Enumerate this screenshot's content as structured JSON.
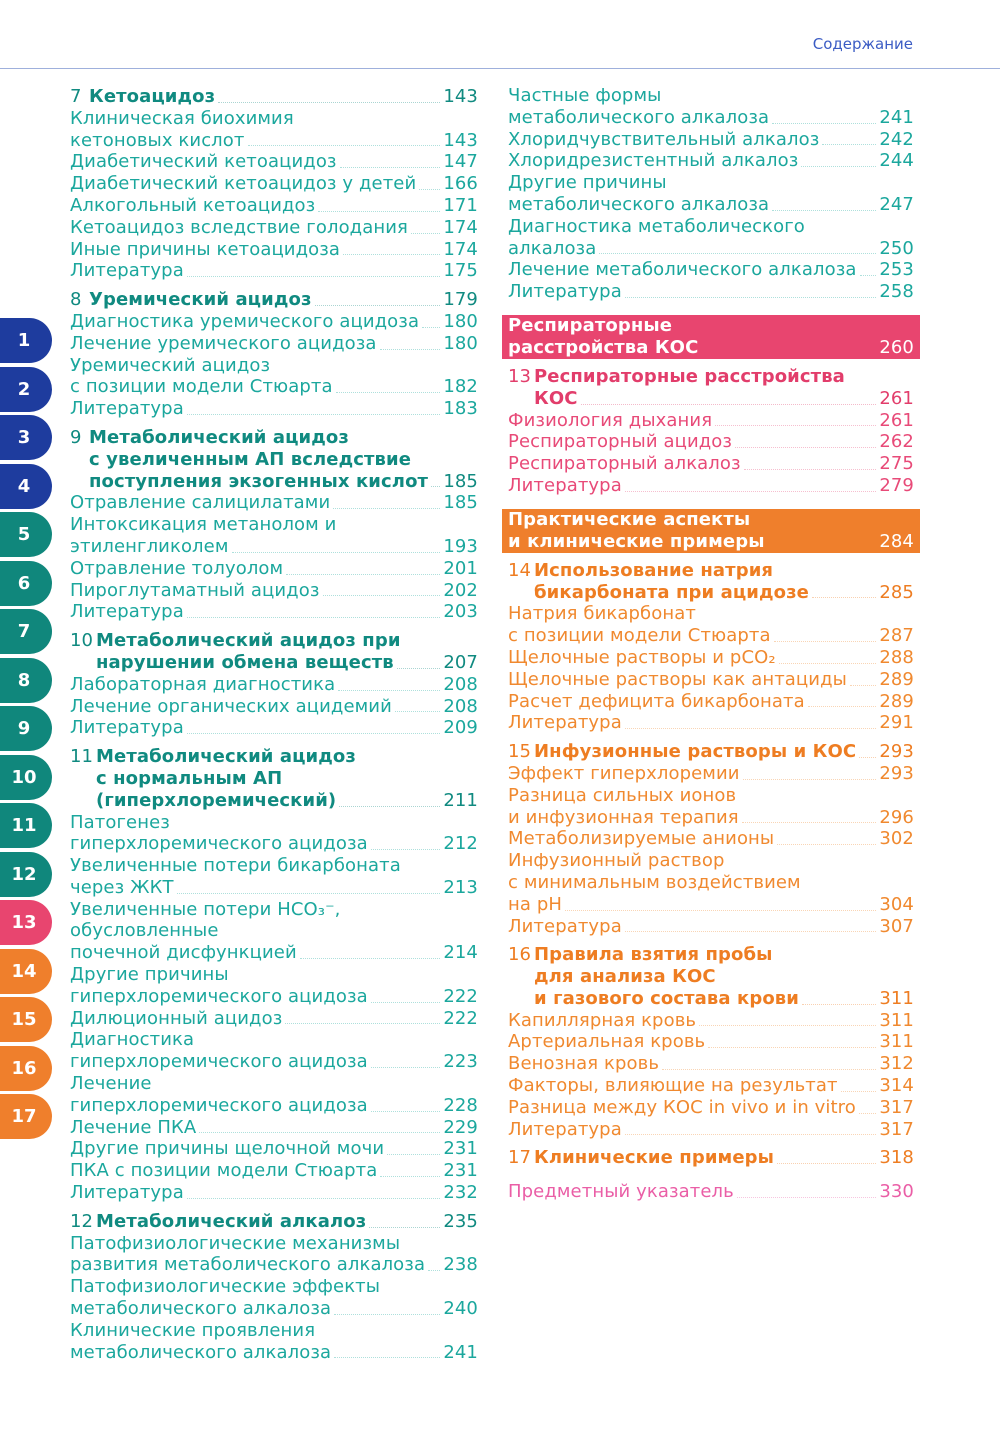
{
  "header": {
    "title": "Содержание"
  },
  "colors": {
    "blue": "#1e3c9e",
    "teal": "#10877c",
    "pink": "#e8456f",
    "orange": "#ef7f2c"
  },
  "tabs": [
    {
      "label": "1",
      "tone": "blue"
    },
    {
      "label": "2",
      "tone": "blue"
    },
    {
      "label": "3",
      "tone": "blue"
    },
    {
      "label": "4",
      "tone": "blue"
    },
    {
      "label": "5",
      "tone": "teal"
    },
    {
      "label": "6",
      "tone": "teal"
    },
    {
      "label": "7",
      "tone": "teal"
    },
    {
      "label": "8",
      "tone": "teal"
    },
    {
      "label": "9",
      "tone": "teal"
    },
    {
      "label": "10",
      "tone": "teal"
    },
    {
      "label": "11",
      "tone": "teal"
    },
    {
      "label": "12",
      "tone": "teal"
    },
    {
      "label": "13",
      "tone": "pink"
    },
    {
      "label": "14",
      "tone": "orange"
    },
    {
      "label": "15",
      "tone": "orange"
    },
    {
      "label": "16",
      "tone": "orange"
    },
    {
      "label": "17",
      "tone": "orange"
    }
  ],
  "left": {
    "blocks": [
      {
        "type": "chapter",
        "tone": "teal",
        "num": "7",
        "lines": [
          "Кетоацидоз"
        ],
        "page": "143"
      },
      {
        "type": "item",
        "tone": "teal",
        "lines": [
          "Клиническая биохимия",
          "кетоновых кислот"
        ],
        "page": "143"
      },
      {
        "type": "item",
        "tone": "teal",
        "lines": [
          "Диабетический кетоацидоз"
        ],
        "page": "147"
      },
      {
        "type": "item",
        "tone": "teal",
        "lines": [
          "Диабетический кетоацидоз у детей"
        ],
        "page": "166"
      },
      {
        "type": "item",
        "tone": "teal",
        "lines": [
          "Алкогольный кетоацидоз"
        ],
        "page": "171"
      },
      {
        "type": "item",
        "tone": "teal",
        "lines": [
          "Кетоацидоз вследствие голодания"
        ],
        "page": "174"
      },
      {
        "type": "item",
        "tone": "teal",
        "lines": [
          "Иные причины кетоацидоза"
        ],
        "page": "174"
      },
      {
        "type": "item",
        "tone": "teal",
        "lines": [
          "Литература"
        ],
        "page": "175"
      },
      {
        "type": "chapter",
        "tone": "teal",
        "num": "8",
        "lines": [
          "Уремический ацидоз"
        ],
        "page": "179"
      },
      {
        "type": "item",
        "tone": "teal",
        "lines": [
          "Диагностика уремического ацидоза"
        ],
        "page": "180"
      },
      {
        "type": "item",
        "tone": "teal",
        "lines": [
          "Лечение уремического ацидоза"
        ],
        "page": "180"
      },
      {
        "type": "item",
        "tone": "teal",
        "lines": [
          "Уремический ацидоз",
          "с позиции модели Стюарта"
        ],
        "page": "182"
      },
      {
        "type": "item",
        "tone": "teal",
        "lines": [
          "Литература"
        ],
        "page": "183"
      },
      {
        "type": "chapter",
        "tone": "teal",
        "num": "9",
        "lines": [
          "Метаболический ацидоз",
          "с увеличенным АП вследствие",
          "поступления экзогенных кислот"
        ],
        "page": "185"
      },
      {
        "type": "item",
        "tone": "teal",
        "lines": [
          "Отравление салицилатами"
        ],
        "page": "185"
      },
      {
        "type": "item",
        "tone": "teal",
        "lines": [
          "Интоксикация метанолом и",
          "этиленгликолем"
        ],
        "page": "193"
      },
      {
        "type": "item",
        "tone": "teal",
        "lines": [
          "Отравление толуолом"
        ],
        "page": "201"
      },
      {
        "type": "item",
        "tone": "teal",
        "lines": [
          "Пироглутаматный ацидоз"
        ],
        "page": "202"
      },
      {
        "type": "item",
        "tone": "teal",
        "lines": [
          "Литература"
        ],
        "page": "203"
      },
      {
        "type": "chapter",
        "tone": "teal",
        "num": "10",
        "lines": [
          "Метаболический ацидоз при",
          "нарушении обмена веществ"
        ],
        "page": "207"
      },
      {
        "type": "item",
        "tone": "teal",
        "lines": [
          "Лабораторная диагностика"
        ],
        "page": "208"
      },
      {
        "type": "item",
        "tone": "teal",
        "lines": [
          "Лечение органических ацидемий"
        ],
        "page": "208"
      },
      {
        "type": "item",
        "tone": "teal",
        "lines": [
          "Литература"
        ],
        "page": "209"
      },
      {
        "type": "chapter",
        "tone": "teal",
        "num": "11",
        "lines": [
          "Метаболический ацидоз",
          "с нормальным АП",
          "(гиперхлоремический)"
        ],
        "page": "211"
      },
      {
        "type": "item",
        "tone": "teal",
        "lines": [
          "Патогенез",
          "гиперхлоремического ацидоза"
        ],
        "page": "212"
      },
      {
        "type": "item",
        "tone": "teal",
        "lines": [
          "Увеличенные потери бикарбоната",
          "через ЖКТ"
        ],
        "page": "213"
      },
      {
        "type": "item",
        "tone": "teal",
        "lines": [
          "Увеличенные потери HCO₃⁻,",
          "обусловленные",
          "почечной дисфункцией"
        ],
        "page": "214"
      },
      {
        "type": "item",
        "tone": "teal",
        "lines": [
          "Другие причины",
          "гиперхлоремического ацидоза"
        ],
        "page": "222"
      },
      {
        "type": "item",
        "tone": "teal",
        "lines": [
          "Дилюционный ацидоз"
        ],
        "page": "222"
      },
      {
        "type": "item",
        "tone": "teal",
        "lines": [
          "Диагностика",
          "гиперхлоремического ацидоза"
        ],
        "page": "223"
      },
      {
        "type": "item",
        "tone": "teal",
        "lines": [
          "Лечение",
          "гиперхлоремического ацидоза"
        ],
        "page": "228"
      },
      {
        "type": "item",
        "tone": "teal",
        "lines": [
          "Лечение ПКА"
        ],
        "page": "229"
      },
      {
        "type": "item",
        "tone": "teal",
        "lines": [
          "Другие причины щелочной мочи"
        ],
        "page": "231"
      },
      {
        "type": "item",
        "tone": "teal",
        "lines": [
          "ПКА с позиции модели Стюарта"
        ],
        "page": "231"
      },
      {
        "type": "item",
        "tone": "teal",
        "lines": [
          "Литература"
        ],
        "page": "232"
      },
      {
        "type": "chapter",
        "tone": "teal",
        "num": "12",
        "lines": [
          "Метаболический алкалоз"
        ],
        "page": "235"
      },
      {
        "type": "item",
        "tone": "teal",
        "lines": [
          "Патофизиологические механизмы",
          "развития метаболического алкалоза"
        ],
        "page": "238"
      },
      {
        "type": "item",
        "tone": "teal",
        "lines": [
          "Патофизиологические эффекты",
          "метаболического алкалоза"
        ],
        "page": "240"
      },
      {
        "type": "item",
        "tone": "teal",
        "lines": [
          "Клинические проявления",
          "метаболического алкалоза"
        ],
        "page": "241"
      }
    ]
  },
  "right": {
    "blocks": [
      {
        "type": "item",
        "tone": "teal",
        "lines": [
          "Частные формы",
          "метаболического алкалоза"
        ],
        "page": "241"
      },
      {
        "type": "item",
        "tone": "teal",
        "lines": [
          "Хлоридчувствительный алкалоз"
        ],
        "page": "242"
      },
      {
        "type": "item",
        "tone": "teal",
        "lines": [
          "Хлоридрезистентный алкалоз"
        ],
        "page": "244"
      },
      {
        "type": "item",
        "tone": "teal",
        "lines": [
          "Другие причины",
          "метаболического алкалоза"
        ],
        "page": "247"
      },
      {
        "type": "item",
        "tone": "teal",
        "lines": [
          "Диагностика метаболического",
          "алкалоза"
        ],
        "page": "250"
      },
      {
        "type": "item",
        "tone": "teal",
        "lines": [
          "Лечение метаболического алкалоза"
        ],
        "page": "253"
      },
      {
        "type": "item",
        "tone": "teal",
        "lines": [
          "Литература"
        ],
        "page": "258"
      },
      {
        "type": "banner",
        "tone": "pink",
        "lines": [
          "Респираторные",
          "расстройства КОС"
        ],
        "page": "260"
      },
      {
        "type": "chapter",
        "tone": "pink",
        "num": "13",
        "lines": [
          "Респираторные расстройства",
          "КОС"
        ],
        "page": "261"
      },
      {
        "type": "item",
        "tone": "pink",
        "lines": [
          "Физиология дыхания"
        ],
        "page": "261"
      },
      {
        "type": "item",
        "tone": "pink",
        "lines": [
          "Респираторный ацидоз"
        ],
        "page": "262"
      },
      {
        "type": "item",
        "tone": "pink",
        "lines": [
          "Респираторный алкалоз"
        ],
        "page": "275"
      },
      {
        "type": "item",
        "tone": "pink",
        "lines": [
          "Литература"
        ],
        "page": "279"
      },
      {
        "type": "banner",
        "tone": "orange",
        "lines": [
          "Практические аспекты",
          "и клинические примеры"
        ],
        "page": "284"
      },
      {
        "type": "chapter",
        "tone": "orange",
        "num": "14",
        "lines": [
          "Использование натрия",
          "бикарбоната при ацидозе"
        ],
        "page": "285"
      },
      {
        "type": "item",
        "tone": "orange",
        "lines": [
          "Натрия бикарбонат",
          "с позиции модели Стюарта"
        ],
        "page": "287"
      },
      {
        "type": "item",
        "tone": "orange",
        "lines": [
          "Щелочные растворы и pCO₂"
        ],
        "page": "288"
      },
      {
        "type": "item",
        "tone": "orange",
        "lines": [
          "Щелочные растворы как антациды"
        ],
        "page": "289"
      },
      {
        "type": "item",
        "tone": "orange",
        "lines": [
          "Расчет дефицита бикарбоната"
        ],
        "page": "289"
      },
      {
        "type": "item",
        "tone": "orange",
        "lines": [
          "Литература"
        ],
        "page": "291"
      },
      {
        "type": "chapter",
        "tone": "orange",
        "num": "15",
        "lines": [
          "Инфузионные растворы и КОС"
        ],
        "page": "293"
      },
      {
        "type": "item",
        "tone": "orange",
        "lines": [
          "Эффект гиперхлоремии"
        ],
        "page": "293"
      },
      {
        "type": "item",
        "tone": "orange",
        "lines": [
          "Разница сильных ионов",
          "и инфузионная терапия"
        ],
        "page": "296"
      },
      {
        "type": "item",
        "tone": "orange",
        "lines": [
          "Метаболизируемые анионы"
        ],
        "page": "302"
      },
      {
        "type": "item",
        "tone": "orange",
        "lines": [
          "Инфузионный раствор",
          "с минимальным воздействием",
          "на pH"
        ],
        "page": "304"
      },
      {
        "type": "item",
        "tone": "orange",
        "lines": [
          "Литература"
        ],
        "page": "307"
      },
      {
        "type": "chapter",
        "tone": "orange",
        "num": "16",
        "lines": [
          "Правила взятия пробы",
          "для анализа КОС",
          "и газового состава крови"
        ],
        "page": "311"
      },
      {
        "type": "item",
        "tone": "orange",
        "lines": [
          "Капиллярная кровь"
        ],
        "page": "311"
      },
      {
        "type": "item",
        "tone": "orange",
        "lines": [
          "Артериальная кровь"
        ],
        "page": "311"
      },
      {
        "type": "item",
        "tone": "orange",
        "lines": [
          "Венозная кровь"
        ],
        "page": "312"
      },
      {
        "type": "item",
        "tone": "orange",
        "lines": [
          "Факторы, влияющие на результат"
        ],
        "page": "314"
      },
      {
        "type": "item",
        "tone": "orange",
        "lines": [
          "Разница между КОС in vivo и in vitro"
        ],
        "page": "317"
      },
      {
        "type": "item",
        "tone": "orange",
        "lines": [
          "Литература"
        ],
        "page": "317"
      },
      {
        "type": "chapter",
        "tone": "orange",
        "num": "17",
        "lines": [
          "Клинические примеры"
        ],
        "page": "318"
      },
      {
        "type": "index",
        "tone": "indexpink",
        "lines": [
          "Предметный указатель"
        ],
        "page": "330"
      }
    ]
  }
}
